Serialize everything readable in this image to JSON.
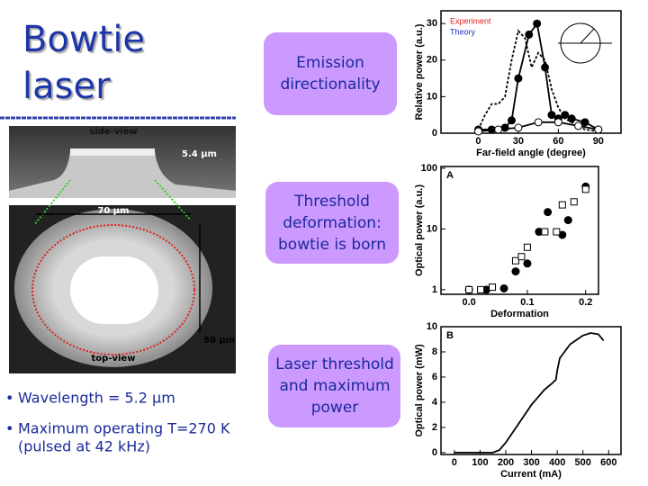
{
  "slide": {
    "title_lines": [
      "Bowtie",
      "laser"
    ],
    "image_labels": {
      "side": "side-view",
      "height": "5.4 µm",
      "width": "70 µm",
      "depth": "50 µm",
      "top": "top-view"
    },
    "bullets": [
      [
        "Wavelength  = 5.2 µm"
      ],
      [
        "Maximum operating T=270 K",
        "(pulsed at 42 kHz)"
      ]
    ],
    "boxes": [
      [
        "Emission",
        "directionality"
      ],
      [
        "Threshold",
        "deformation:",
        "bowtie is born"
      ],
      [
        "Laser threshold",
        "and maximum",
        "power"
      ]
    ]
  },
  "chart_data": [
    {
      "type": "line",
      "ylabel": "Relative power (a.u.)",
      "xlabel": "Far-field  angle  (degree)",
      "xlim": [
        -28,
        107
      ],
      "ylim": [
        0,
        33.5
      ],
      "xticks": [
        0,
        30,
        60,
        90
      ],
      "yticks": [
        0,
        10,
        20,
        30
      ],
      "series": [
        {
          "name": "Experiment",
          "color": "#000000",
          "name_color": "#e02020",
          "marker": "filled-circle",
          "dash": false,
          "x": [
            0,
            10,
            20,
            25,
            30,
            38,
            44,
            50,
            55,
            60,
            65,
            70,
            80,
            90
          ],
          "values": [
            1,
            1,
            1.5,
            3.5,
            15,
            27,
            30,
            18,
            5,
            4,
            5,
            4,
            3,
            1
          ]
        },
        {
          "name": "Theory",
          "color": "#000000",
          "name_color": "#2030c0",
          "marker": "none",
          "dash": true,
          "x": [
            0,
            5,
            10,
            15,
            20,
            25,
            30,
            35,
            40,
            45,
            50,
            55,
            60,
            65,
            70,
            75,
            80,
            90
          ],
          "values": [
            1,
            5,
            8,
            8,
            10,
            20,
            28,
            26,
            18,
            22,
            20,
            12,
            7,
            4,
            3,
            2,
            1,
            0.5
          ]
        },
        {
          "color": "#000000",
          "marker": "open-circle",
          "dash": false,
          "x": [
            0,
            15,
            30,
            45,
            60,
            75,
            90
          ],
          "values": [
            0.5,
            1,
            1.5,
            3,
            3,
            2,
            1
          ]
        }
      ]
    },
    {
      "type": "scatter",
      "panel": "A",
      "ylabel": "Optical  power  (a.u.)",
      "xlabel": "Deformation",
      "log_y": true,
      "xlim": [
        -0.048,
        0.222
      ],
      "ylim": [
        0.84,
        107
      ],
      "xticks": [
        {
          "value": 0,
          "label": "0.0"
        },
        0.1,
        0.2
      ],
      "yticks": [
        1,
        10,
        100
      ],
      "series": [
        {
          "color": "#000000",
          "marker": "filled-circle",
          "x": [
            0,
            0.03,
            0.06,
            0.08,
            0.1,
            0.12,
            0.135,
            0.16,
            0.17,
            0.2
          ],
          "values": [
            1,
            1,
            1.05,
            2,
            2.7,
            9,
            19,
            8,
            14,
            50
          ]
        },
        {
          "color": "#000000",
          "marker": "open-square",
          "x": [
            0,
            0.02,
            0.04,
            0.08,
            0.09,
            0.1,
            0.13,
            0.15,
            0.16,
            0.18,
            0.2
          ],
          "values": [
            1,
            1,
            1.1,
            3,
            3.5,
            5,
            9,
            9,
            25,
            28,
            45
          ]
        }
      ]
    },
    {
      "type": "line",
      "panel": "B",
      "ylabel": "Optical  power  (mW)",
      "xlabel": "Current  (mA)",
      "xlim": [
        -52,
        648
      ],
      "ylim": [
        -0.15,
        10
      ],
      "xticks": [
        0,
        100,
        200,
        300,
        400,
        500,
        600
      ],
      "yticks": [
        0,
        2,
        4,
        6,
        8,
        10
      ],
      "series": [
        {
          "color": "#000000",
          "marker": "none",
          "dash": false,
          "x": [
            0,
            100,
            150,
            175,
            200,
            250,
            300,
            350,
            380,
            395,
            400,
            410,
            450,
            500,
            530,
            560,
            580
          ],
          "values": [
            0,
            0,
            0,
            0.2,
            0.8,
            2.3,
            3.8,
            5,
            5.5,
            5.8,
            6.5,
            7.5,
            8.6,
            9.3,
            9.5,
            9.4,
            8.9
          ]
        }
      ]
    }
  ]
}
